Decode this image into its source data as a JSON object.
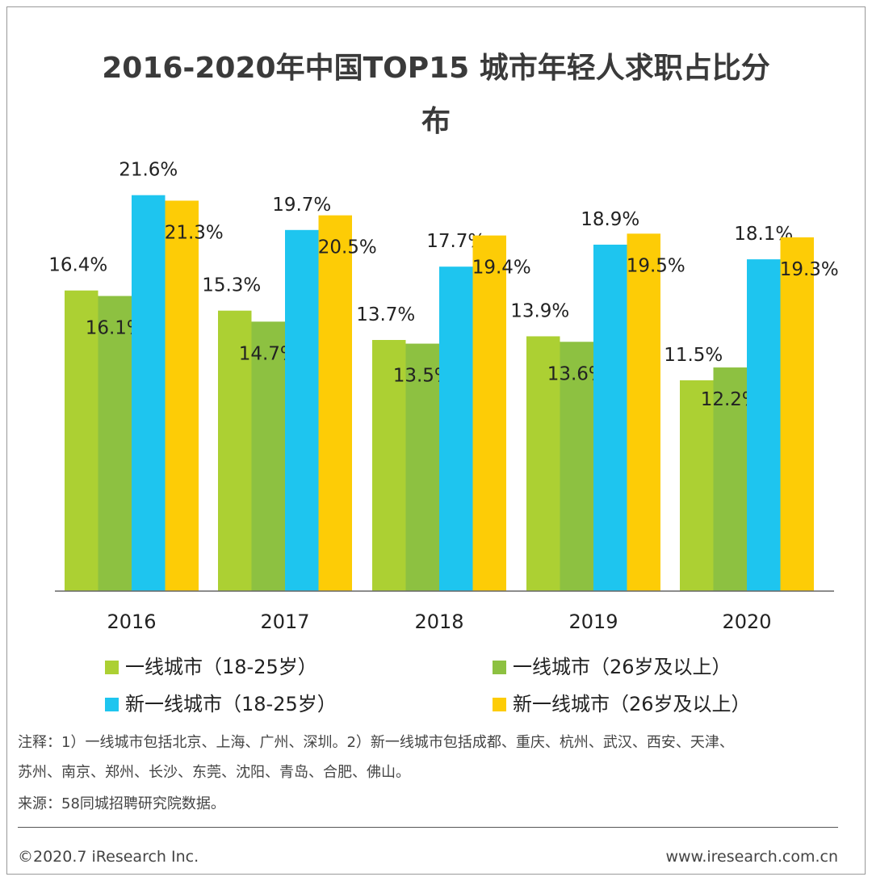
{
  "title": {
    "line1": "2016-2020年中国TOP15 城市年轻人求职占比分",
    "line2": "布"
  },
  "chart_data": {
    "type": "bar",
    "categories": [
      "2016",
      "2017",
      "2018",
      "2019",
      "2020"
    ],
    "series": [
      {
        "name": "一线城市（18-25岁）",
        "color": "#acd033",
        "values": [
          16.4,
          15.3,
          13.7,
          13.9,
          11.5
        ],
        "labels": [
          "16.4%",
          "15.3%",
          "13.7%",
          "13.9%",
          "11.5%"
        ]
      },
      {
        "name": "一线城市（26岁及以上）",
        "color": "#8dc141",
        "values": [
          16.1,
          14.7,
          13.5,
          13.6,
          12.2
        ],
        "labels": [
          "16.1%",
          "14.7%",
          "13.5%",
          "13.6%",
          "12.2%"
        ]
      },
      {
        "name": "新一线城市（18-25岁）",
        "color": "#1ec5ef",
        "values": [
          21.6,
          19.7,
          17.7,
          18.9,
          18.1
        ],
        "labels": [
          "21.6%",
          "19.7%",
          "17.7%",
          "18.9%",
          "18.1%"
        ]
      },
      {
        "name": "新一线城市（26岁及以上）",
        "color": "#fdcc06",
        "values": [
          21.3,
          20.5,
          19.4,
          19.5,
          19.3
        ],
        "labels": [
          "21.3%",
          "20.5%",
          "19.4%",
          "19.5%",
          "19.3%"
        ]
      }
    ],
    "ylim": [
      0,
      25
    ],
    "grid": false,
    "legend_position": "bottom"
  },
  "notes": {
    "line1": "注释：1）一线城市包括北京、上海、广州、深圳。2）新一线城市包括成都、重庆、杭州、武汉、西安、天津、",
    "line2": "苏州、南京、郑州、长沙、东莞、沈阳、青岛、合肥、佛山。",
    "source": "来源：58同城招聘研究院数据。"
  },
  "footer": {
    "copyright": "©2020.7 iResearch Inc.",
    "website": "www.iresearch.com.cn"
  }
}
